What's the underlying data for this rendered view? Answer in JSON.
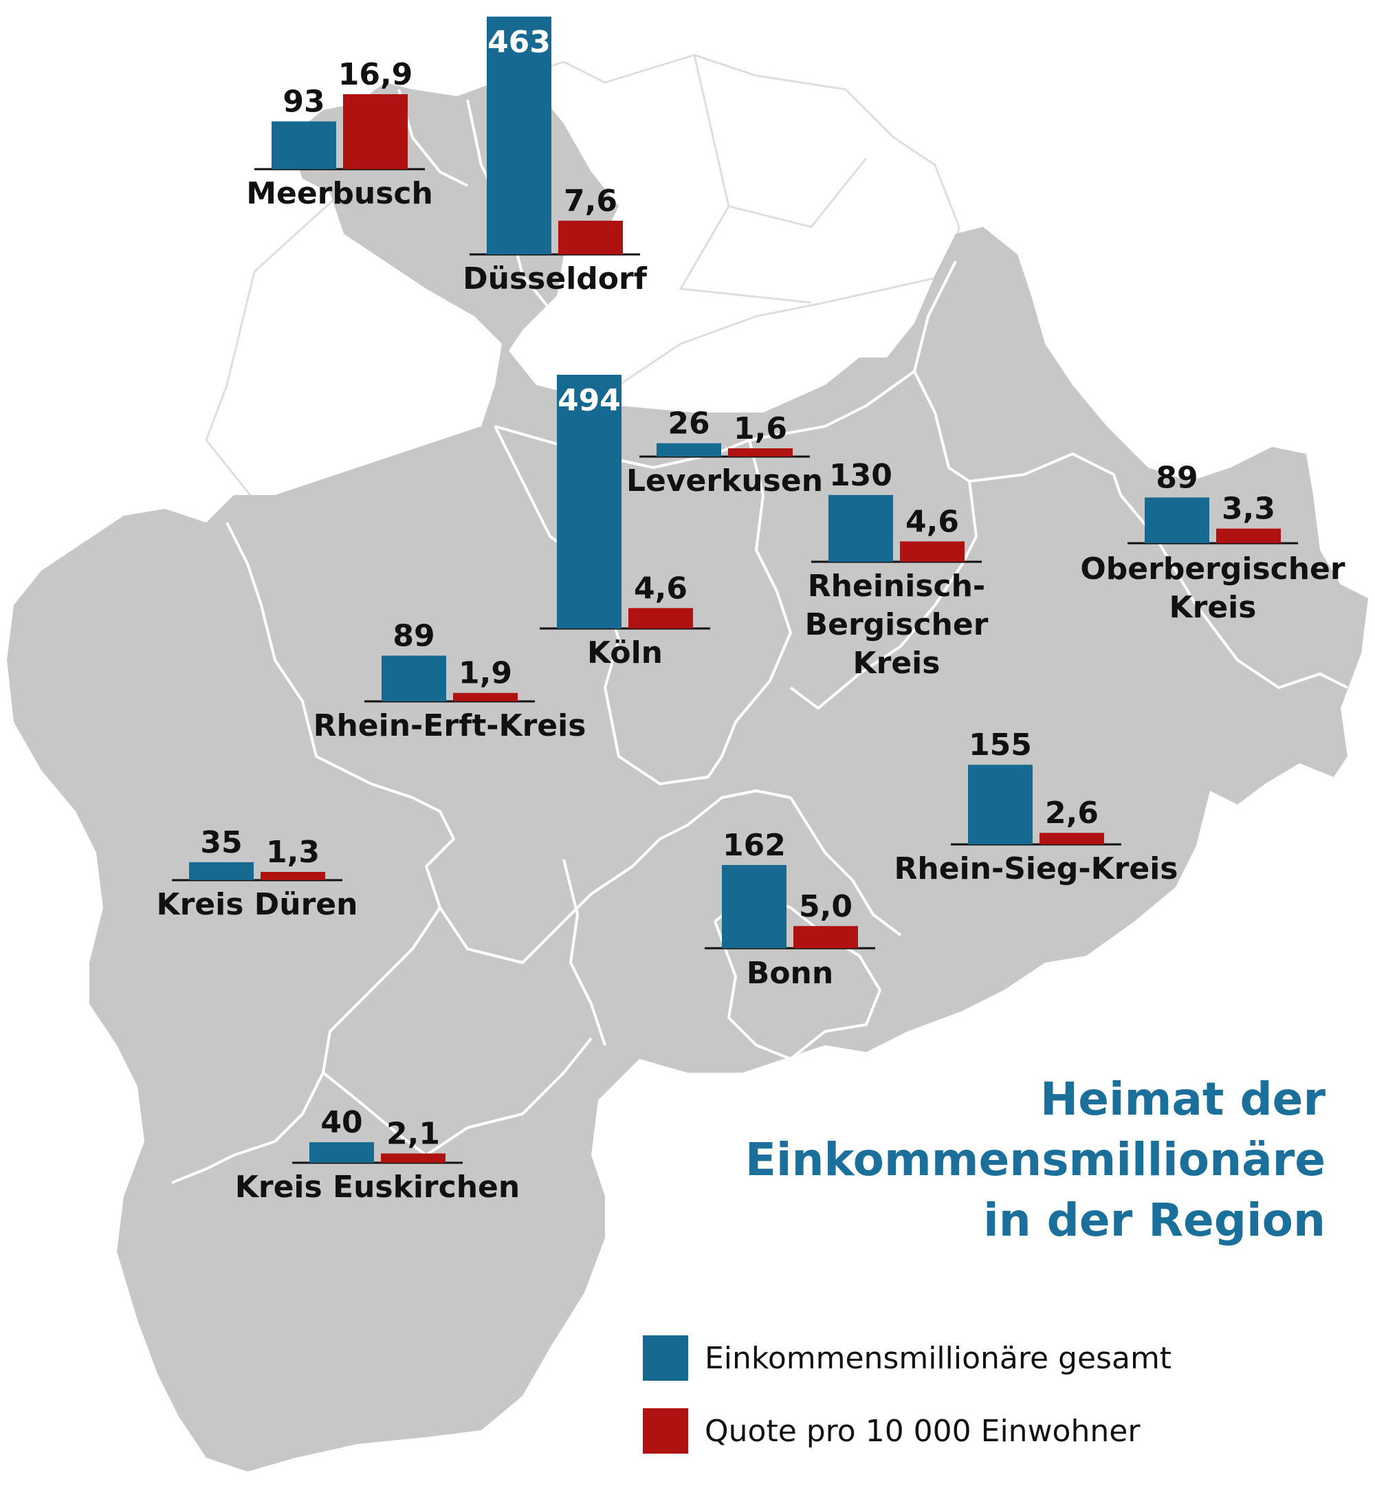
{
  "title": {
    "line1": "Heimat der",
    "line2": "Einkommensmillionäre",
    "line3": "in der Region"
  },
  "legend": {
    "total_label": "Einkommensmillionäre gesamt",
    "quota_label": "Quote pro 10 000 Einwohner",
    "total_color": "#166a92",
    "quota_color": "#b01212"
  },
  "colors": {
    "map_fill": "#c7c7c7",
    "outer_area": "#ffffff",
    "title": "#1a6f9b"
  },
  "chart_data": {
    "type": "bar",
    "series_names": [
      "Einkommensmillionäre gesamt",
      "Quote pro 10 000 Einwohner"
    ],
    "regions": [
      {
        "name": "Meerbusch",
        "label_lines": [
          "Meerbusch"
        ],
        "total": 93,
        "total_text": "93",
        "quota": 16.9,
        "quota_text": "16,9"
      },
      {
        "name": "Düsseldorf",
        "label_lines": [
          "Düsseldorf"
        ],
        "total": 463,
        "total_text": "463",
        "quota": 7.6,
        "quota_text": "7,6"
      },
      {
        "name": "Köln",
        "label_lines": [
          "Köln"
        ],
        "total": 494,
        "total_text": "494",
        "quota": 4.6,
        "quota_text": "4,6"
      },
      {
        "name": "Leverkusen",
        "label_lines": [
          "Leverkusen"
        ],
        "total": 26,
        "total_text": "26",
        "quota": 1.6,
        "quota_text": "1,6"
      },
      {
        "name": "Rheinisch-Bergischer Kreis",
        "label_lines": [
          "Rheinisch-",
          "Bergischer",
          "Kreis"
        ],
        "total": 130,
        "total_text": "130",
        "quota": 4.6,
        "quota_text": "4,6"
      },
      {
        "name": "Oberbergischer Kreis",
        "label_lines": [
          "Oberbergischer",
          "Kreis"
        ],
        "total": 89,
        "total_text": "89",
        "quota": 3.3,
        "quota_text": "3,3"
      },
      {
        "name": "Rhein-Erft-Kreis",
        "label_lines": [
          "Rhein-Erft-Kreis"
        ],
        "total": 89,
        "total_text": "89",
        "quota": 1.9,
        "quota_text": "1,9"
      },
      {
        "name": "Rhein-Sieg-Kreis",
        "label_lines": [
          "Rhein-Sieg-Kreis"
        ],
        "total": 155,
        "total_text": "155",
        "quota": 2.6,
        "quota_text": "2,6"
      },
      {
        "name": "Kreis Düren",
        "label_lines": [
          "Kreis Düren"
        ],
        "total": 35,
        "total_text": "35",
        "quota": 1.3,
        "quota_text": "1,3"
      },
      {
        "name": "Bonn",
        "label_lines": [
          "Bonn"
        ],
        "total": 162,
        "total_text": "162",
        "quota": 5.0,
        "quota_text": "5,0"
      },
      {
        "name": "Kreis Euskirchen",
        "label_lines": [
          "Kreis Euskirchen"
        ],
        "total": 40,
        "total_text": "40",
        "quota": 2.1,
        "quota_text": "2,1"
      }
    ]
  }
}
